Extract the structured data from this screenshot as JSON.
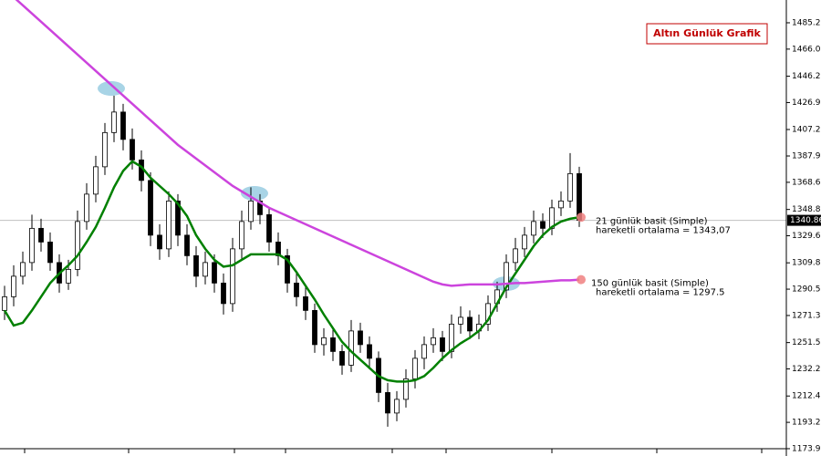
{
  "chart_data": {
    "type": "candlestick",
    "title": "Altın Günlük Grafik",
    "ylim": [
      1168.6,
      1501.9
    ],
    "yticks": [
      1485.25,
      {
        "value": 1466,
        "label": "1466.00"
      },
      {
        "value": 1446.2,
        "label": "1446.20"
      },
      1426.95,
      1407.25,
      {
        "value": 1387.9,
        "label": "1387.90"
      },
      1368.65,
      {
        "value": 1348.8,
        "label": "1348.80"
      },
      {
        "value": 1329.6,
        "label": "1329.60"
      },
      {
        "value": 1309.8,
        "label": "1309.80"
      },
      1290.55,
      {
        "value": 1271.3,
        "label": "1271.30"
      },
      {
        "value": 1251.5,
        "label": "1251.50"
      },
      1232.25,
      1212.45,
      {
        "value": 1193.2,
        "label": "1193.20"
      },
      1173.95
    ],
    "last_price": 1340.86,
    "candle_color": "#000000",
    "open": [
      1275,
      1285,
      1300,
      1310,
      1335,
      1325,
      1310,
      1295,
      1305,
      1340,
      1360,
      1380,
      1405,
      1420,
      1400,
      1385,
      1370,
      1330,
      1320,
      1355,
      1330,
      1315,
      1300,
      1310,
      1295,
      1280,
      1320,
      1340,
      1355,
      1345,
      1325,
      1315,
      1295,
      1285,
      1275,
      1250,
      1255,
      1245,
      1235,
      1260,
      1250,
      1240,
      1215,
      1200,
      1210,
      1225,
      1240,
      1250,
      1255,
      1245,
      1265,
      1270,
      1260,
      1265,
      1280,
      1290,
      1310,
      1320,
      1330,
      1340,
      1335,
      1350,
      1355,
      1375
    ],
    "high": [
      1293,
      1308,
      1318,
      1345,
      1342,
      1332,
      1316,
      1312,
      1348,
      1368,
      1388,
      1412,
      1432,
      1426,
      1408,
      1392,
      1376,
      1338,
      1362,
      1360,
      1338,
      1322,
      1318,
      1316,
      1302,
      1328,
      1348,
      1365,
      1360,
      1350,
      1332,
      1320,
      1302,
      1292,
      1280,
      1262,
      1262,
      1250,
      1268,
      1266,
      1256,
      1245,
      1222,
      1216,
      1232,
      1246,
      1256,
      1262,
      1260,
      1272,
      1278,
      1275,
      1272,
      1286,
      1296,
      1316,
      1328,
      1336,
      1348,
      1346,
      1356,
      1362,
      1390,
      1380
    ],
    "low": [
      1268,
      1278,
      1294,
      1304,
      1318,
      1304,
      1288,
      1290,
      1300,
      1334,
      1354,
      1374,
      1398,
      1392,
      1378,
      1362,
      1322,
      1312,
      1314,
      1322,
      1308,
      1292,
      1294,
      1288,
      1272,
      1274,
      1312,
      1334,
      1338,
      1318,
      1308,
      1288,
      1278,
      1268,
      1244,
      1242,
      1238,
      1228,
      1230,
      1244,
      1232,
      1208,
      1190,
      1194,
      1204,
      1218,
      1232,
      1244,
      1238,
      1240,
      1258,
      1254,
      1254,
      1260,
      1274,
      1284,
      1304,
      1314,
      1324,
      1328,
      1330,
      1344,
      1350,
      1336
    ],
    "close": [
      1285,
      1300,
      1310,
      1335,
      1325,
      1310,
      1295,
      1305,
      1340,
      1360,
      1380,
      1405,
      1420,
      1400,
      1385,
      1370,
      1330,
      1320,
      1355,
      1330,
      1315,
      1300,
      1310,
      1295,
      1280,
      1320,
      1340,
      1355,
      1345,
      1325,
      1315,
      1295,
      1285,
      1275,
      1250,
      1255,
      1245,
      1235,
      1260,
      1250,
      1240,
      1215,
      1200,
      1210,
      1225,
      1240,
      1250,
      1255,
      1245,
      1265,
      1270,
      1260,
      1265,
      1280,
      1290,
      1310,
      1320,
      1330,
      1340,
      1335,
      1350,
      1355,
      1375,
      1340.86
    ],
    "lines": [
      {
        "color": "#008000",
        "values": [
          1275,
          1264,
          1266,
          1275,
          1285,
          1295,
          1302,
          1308,
          1315,
          1325,
          1336,
          1350,
          1365,
          1377,
          1384,
          1380,
          1372,
          1366,
          1360,
          1353,
          1344,
          1330,
          1320,
          1312,
          1307,
          1308,
          1312,
          1316,
          1316,
          1316,
          1316,
          1312,
          1303,
          1293,
          1283,
          1272,
          1262,
          1252,
          1245,
          1239,
          1233,
          1227,
          1224,
          1223,
          1223,
          1224,
          1227,
          1233,
          1240,
          1246,
          1251,
          1255,
          1260,
          1268,
          1280,
          1292,
          1302,
          1312,
          1322,
          1330,
          1336,
          1340,
          1342,
          1343.07
        ]
      },
      {
        "color": "#cc44dd",
        "values": [
          1510,
          1504,
          1498,
          1492,
          1486,
          1480,
          1474,
          1468,
          1462,
          1456,
          1450,
          1444,
          1438,
          1432,
          1426,
          1420,
          1414,
          1408,
          1402,
          1396,
          1391,
          1386,
          1381,
          1376,
          1371,
          1366,
          1362,
          1358,
          1354,
          1350,
          1347,
          1344,
          1341,
          1338,
          1335,
          1332,
          1329,
          1326,
          1323,
          1320,
          1317,
          1314,
          1311,
          1308,
          1305,
          1302,
          1299,
          1296,
          1294,
          1293,
          1293.5,
          1294,
          1294,
          1294,
          1294,
          1294.5,
          1295,
          1295,
          1295.5,
          1296,
          1296.5,
          1297,
          1297,
          1297.5
        ]
      }
    ],
    "annotations": [
      [
        "21 günlük basit (Simple)",
        "hareketli ortalama = 1343,07"
      ],
      [
        "150 günlük basit (Simple)",
        "hareketli ortalama = 1297.5"
      ]
    ]
  }
}
